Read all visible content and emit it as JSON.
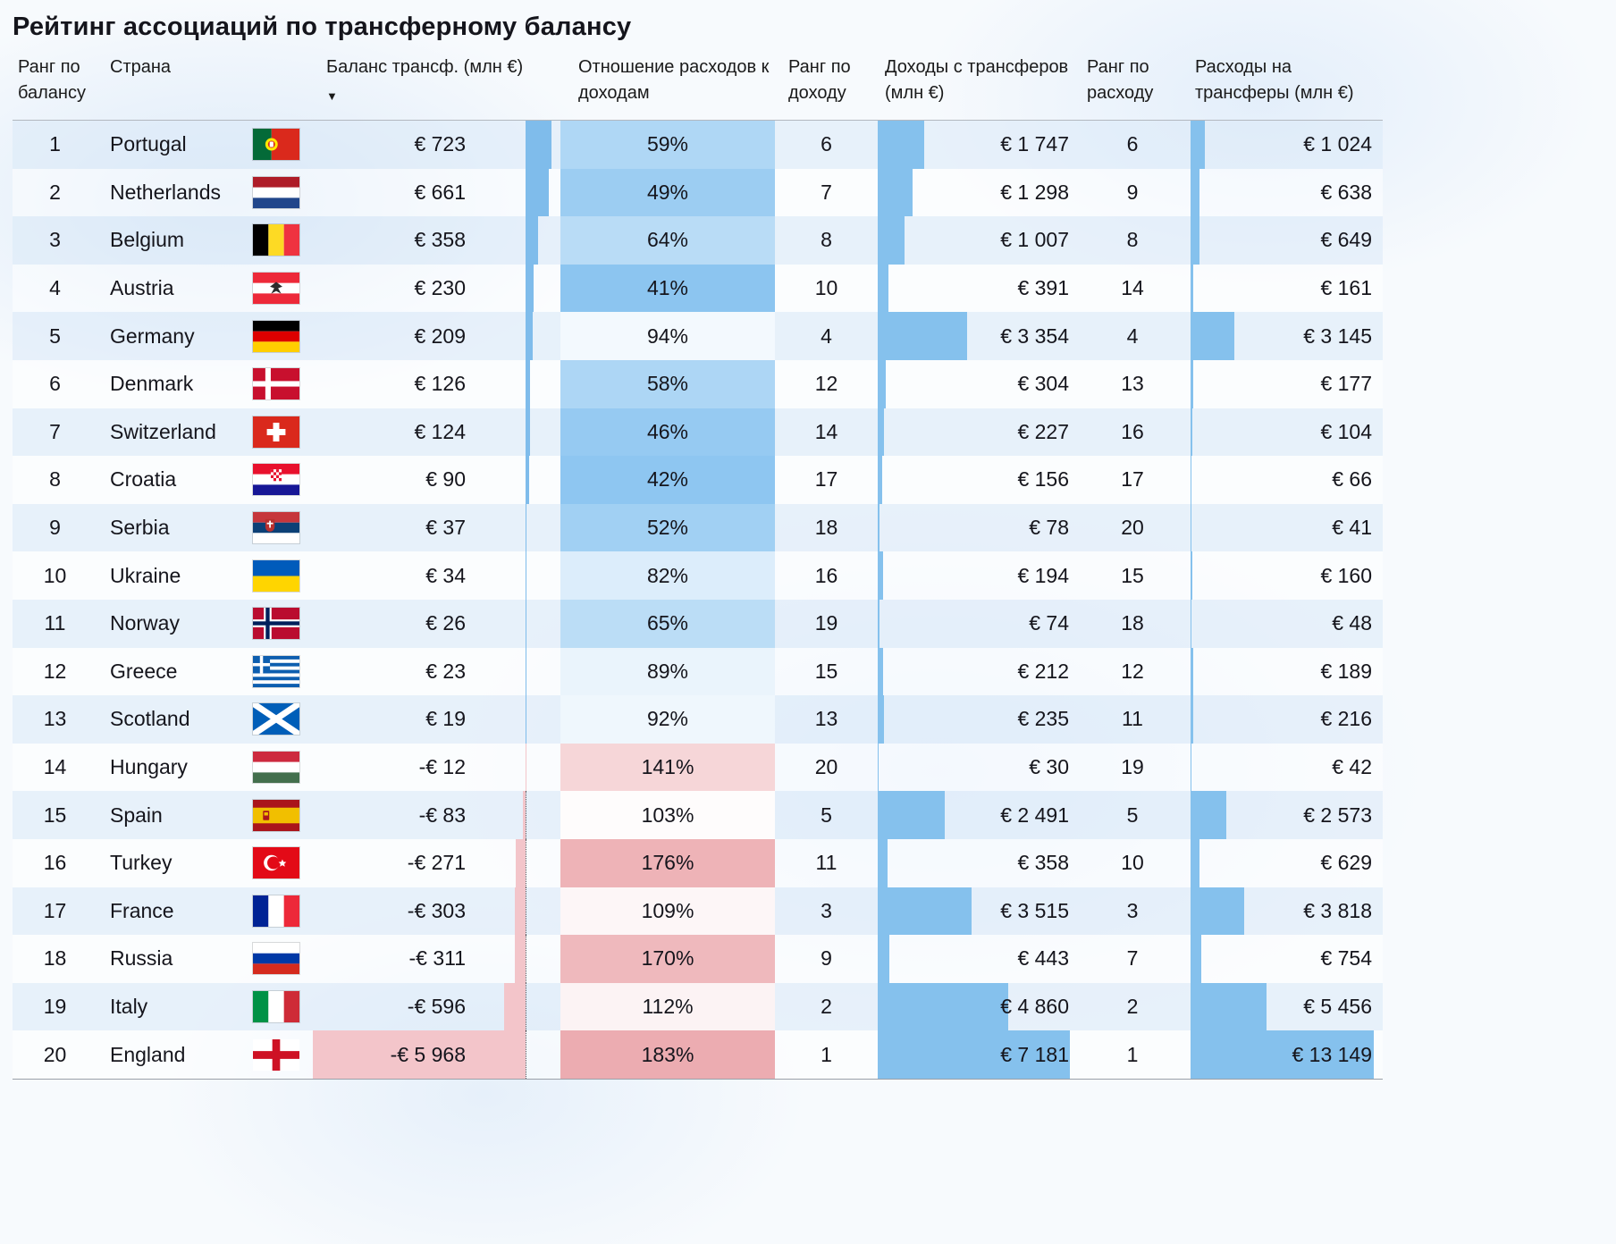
{
  "title": "Рейтинг ассоциаций по трансферному балансу",
  "sort_indicator": "▼",
  "colors": {
    "bar_blue": "#85c1ed",
    "balance_positive": "#7fbceb",
    "balance_negative": "#f3c5ca",
    "ratio_blue": "#8ac4f0",
    "ratio_red": "#ecaaaf"
  },
  "chart_data": {
    "type": "table",
    "title": "Рейтинг ассоциаций по трансферному балансу",
    "sort": {
      "column": "balance",
      "order": "desc"
    },
    "columns": {
      "rank_balance": "Ранг по балансу",
      "country": "Страна",
      "balance": "Баланс трансф. (млн €)",
      "ratio": "Отношение расходов к доходам",
      "rank_income": "Ранг по доходу",
      "income": "Доходы с трансферов (млн €)",
      "rank_expense": "Ранг по расходу",
      "expense": "Расходы на трансферы (млн €)"
    },
    "rows": [
      {
        "rank": "1",
        "country": "Portugal",
        "flag": "pt",
        "balance_label": "€ 723",
        "balance_value": 723,
        "ratio_label": "59%",
        "ratio_value": 59,
        "rank_income": "6",
        "income_label": "€ 1 747",
        "income_value": 1747,
        "rank_expense": "6",
        "expense_label": "€ 1 024",
        "expense_value": 1024
      },
      {
        "rank": "2",
        "country": "Netherlands",
        "flag": "nl",
        "balance_label": "€ 661",
        "balance_value": 661,
        "ratio_label": "49%",
        "ratio_value": 49,
        "rank_income": "7",
        "income_label": "€ 1 298",
        "income_value": 1298,
        "rank_expense": "9",
        "expense_label": "€ 638",
        "expense_value": 638
      },
      {
        "rank": "3",
        "country": "Belgium",
        "flag": "be",
        "balance_label": "€ 358",
        "balance_value": 358,
        "ratio_label": "64%",
        "ratio_value": 64,
        "rank_income": "8",
        "income_label": "€ 1 007",
        "income_value": 1007,
        "rank_expense": "8",
        "expense_label": "€ 649",
        "expense_value": 649
      },
      {
        "rank": "4",
        "country": "Austria",
        "flag": "at",
        "balance_label": "€ 230",
        "balance_value": 230,
        "ratio_label": "41%",
        "ratio_value": 41,
        "rank_income": "10",
        "income_label": "€ 391",
        "income_value": 391,
        "rank_expense": "14",
        "expense_label": "€ 161",
        "expense_value": 161
      },
      {
        "rank": "5",
        "country": "Germany",
        "flag": "de",
        "balance_label": "€ 209",
        "balance_value": 209,
        "ratio_label": "94%",
        "ratio_value": 94,
        "rank_income": "4",
        "income_label": "€ 3 354",
        "income_value": 3354,
        "rank_expense": "4",
        "expense_label": "€ 3 145",
        "expense_value": 3145
      },
      {
        "rank": "6",
        "country": "Denmark",
        "flag": "dk",
        "balance_label": "€ 126",
        "balance_value": 126,
        "ratio_label": "58%",
        "ratio_value": 58,
        "rank_income": "12",
        "income_label": "€ 304",
        "income_value": 304,
        "rank_expense": "13",
        "expense_label": "€ 177",
        "expense_value": 177
      },
      {
        "rank": "7",
        "country": "Switzerland",
        "flag": "ch",
        "balance_label": "€ 124",
        "balance_value": 124,
        "ratio_label": "46%",
        "ratio_value": 46,
        "rank_income": "14",
        "income_label": "€ 227",
        "income_value": 227,
        "rank_expense": "16",
        "expense_label": "€ 104",
        "expense_value": 104
      },
      {
        "rank": "8",
        "country": "Croatia",
        "flag": "hr",
        "balance_label": "€ 90",
        "balance_value": 90,
        "ratio_label": "42%",
        "ratio_value": 42,
        "rank_income": "17",
        "income_label": "€ 156",
        "income_value": 156,
        "rank_expense": "17",
        "expense_label": "€ 66",
        "expense_value": 66
      },
      {
        "rank": "9",
        "country": "Serbia",
        "flag": "rs",
        "balance_label": "€ 37",
        "balance_value": 37,
        "ratio_label": "52%",
        "ratio_value": 52,
        "rank_income": "18",
        "income_label": "€ 78",
        "income_value": 78,
        "rank_expense": "20",
        "expense_label": "€ 41",
        "expense_value": 41
      },
      {
        "rank": "10",
        "country": "Ukraine",
        "flag": "ua",
        "balance_label": "€ 34",
        "balance_value": 34,
        "ratio_label": "82%",
        "ratio_value": 82,
        "rank_income": "16",
        "income_label": "€ 194",
        "income_value": 194,
        "rank_expense": "15",
        "expense_label": "€ 160",
        "expense_value": 160
      },
      {
        "rank": "11",
        "country": "Norway",
        "flag": "no",
        "balance_label": "€ 26",
        "balance_value": 26,
        "ratio_label": "65%",
        "ratio_value": 65,
        "rank_income": "19",
        "income_label": "€ 74",
        "income_value": 74,
        "rank_expense": "18",
        "expense_label": "€ 48",
        "expense_value": 48
      },
      {
        "rank": "12",
        "country": "Greece",
        "flag": "gr",
        "balance_label": "€ 23",
        "balance_value": 23,
        "ratio_label": "89%",
        "ratio_value": 89,
        "rank_income": "15",
        "income_label": "€ 212",
        "income_value": 212,
        "rank_expense": "12",
        "expense_label": "€ 189",
        "expense_value": 189
      },
      {
        "rank": "13",
        "country": "Scotland",
        "flag": "sct",
        "balance_label": "€ 19",
        "balance_value": 19,
        "ratio_label": "92%",
        "ratio_value": 92,
        "rank_income": "13",
        "income_label": "€ 235",
        "income_value": 235,
        "rank_expense": "11",
        "expense_label": "€ 216",
        "expense_value": 216
      },
      {
        "rank": "14",
        "country": "Hungary",
        "flag": "hu",
        "balance_label": "-€ 12",
        "balance_value": -12,
        "ratio_label": "141%",
        "ratio_value": 141,
        "rank_income": "20",
        "income_label": "€ 30",
        "income_value": 30,
        "rank_expense": "19",
        "expense_label": "€ 42",
        "expense_value": 42
      },
      {
        "rank": "15",
        "country": "Spain",
        "flag": "es",
        "balance_label": "-€ 83",
        "balance_value": -83,
        "ratio_label": "103%",
        "ratio_value": 103,
        "rank_income": "5",
        "income_label": "€ 2 491",
        "income_value": 2491,
        "rank_expense": "5",
        "expense_label": "€ 2 573",
        "expense_value": 2573
      },
      {
        "rank": "16",
        "country": "Turkey",
        "flag": "tr",
        "balance_label": "-€ 271",
        "balance_value": -271,
        "ratio_label": "176%",
        "ratio_value": 176,
        "rank_income": "11",
        "income_label": "€ 358",
        "income_value": 358,
        "rank_expense": "10",
        "expense_label": "€ 629",
        "expense_value": 629
      },
      {
        "rank": "17",
        "country": "France",
        "flag": "fr",
        "balance_label": "-€ 303",
        "balance_value": -303,
        "ratio_label": "109%",
        "ratio_value": 109,
        "rank_income": "3",
        "income_label": "€ 3 515",
        "income_value": 3515,
        "rank_expense": "3",
        "expense_label": "€ 3 818",
        "expense_value": 3818
      },
      {
        "rank": "18",
        "country": "Russia",
        "flag": "ru",
        "balance_label": "-€ 311",
        "balance_value": -311,
        "ratio_label": "170%",
        "ratio_value": 170,
        "rank_income": "9",
        "income_label": "€ 443",
        "income_value": 443,
        "rank_expense": "7",
        "expense_label": "€ 754",
        "expense_value": 754
      },
      {
        "rank": "19",
        "country": "Italy",
        "flag": "it",
        "balance_label": "-€ 596",
        "balance_value": -596,
        "ratio_label": "112%",
        "ratio_value": 112,
        "rank_income": "2",
        "income_label": "€ 4 860",
        "income_value": 4860,
        "rank_expense": "2",
        "expense_label": "€ 5 456",
        "expense_value": 5456
      },
      {
        "rank": "20",
        "country": "England",
        "flag": "en",
        "balance_label": "-€ 5 968",
        "balance_value": -5968,
        "ratio_label": "183%",
        "ratio_value": 183,
        "rank_income": "1",
        "income_label": "€ 7 181",
        "income_value": 7181,
        "rank_expense": "1",
        "expense_label": "€ 13 149",
        "expense_value": 13149
      }
    ]
  }
}
